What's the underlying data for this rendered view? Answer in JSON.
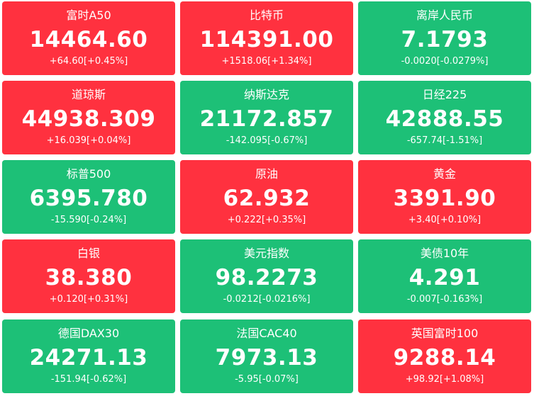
{
  "colors": {
    "up": "#ff313f",
    "down": "#1dc077",
    "text": "#ffffff"
  },
  "tiles": [
    {
      "name": "富时A50",
      "price": "14464.60",
      "change": "+64.60[+0.45%]",
      "trend": "up"
    },
    {
      "name": "比特币",
      "price": "114391.00",
      "change": "+1518.06[+1.34%]",
      "trend": "up"
    },
    {
      "name": "离岸人民币",
      "price": "7.1793",
      "change": "-0.0020[-0.0279%]",
      "trend": "down"
    },
    {
      "name": "道琼斯",
      "price": "44938.309",
      "change": "+16.039[+0.04%]",
      "trend": "up"
    },
    {
      "name": "纳斯达克",
      "price": "21172.857",
      "change": "-142.095[-0.67%]",
      "trend": "down"
    },
    {
      "name": "日经225",
      "price": "42888.55",
      "change": "-657.74[-1.51%]",
      "trend": "down"
    },
    {
      "name": "标普500",
      "price": "6395.780",
      "change": "-15.590[-0.24%]",
      "trend": "down"
    },
    {
      "name": "原油",
      "price": "62.932",
      "change": "+0.222[+0.35%]",
      "trend": "up"
    },
    {
      "name": "黄金",
      "price": "3391.90",
      "change": "+3.40[+0.10%]",
      "trend": "up"
    },
    {
      "name": "白银",
      "price": "38.380",
      "change": "+0.120[+0.31%]",
      "trend": "up"
    },
    {
      "name": "美元指数",
      "price": "98.2273",
      "change": "-0.0212[-0.0216%]",
      "trend": "down"
    },
    {
      "name": "美债10年",
      "price": "4.291",
      "change": "-0.007[-0.163%]",
      "trend": "down"
    },
    {
      "name": "德国DAX30",
      "price": "24271.13",
      "change": "-151.94[-0.62%]",
      "trend": "down"
    },
    {
      "name": "法国CAC40",
      "price": "7973.13",
      "change": "-5.95[-0.07%]",
      "trend": "down"
    },
    {
      "name": "英国富时100",
      "price": "9288.14",
      "change": "+98.92[+1.08%]",
      "trend": "up"
    }
  ]
}
